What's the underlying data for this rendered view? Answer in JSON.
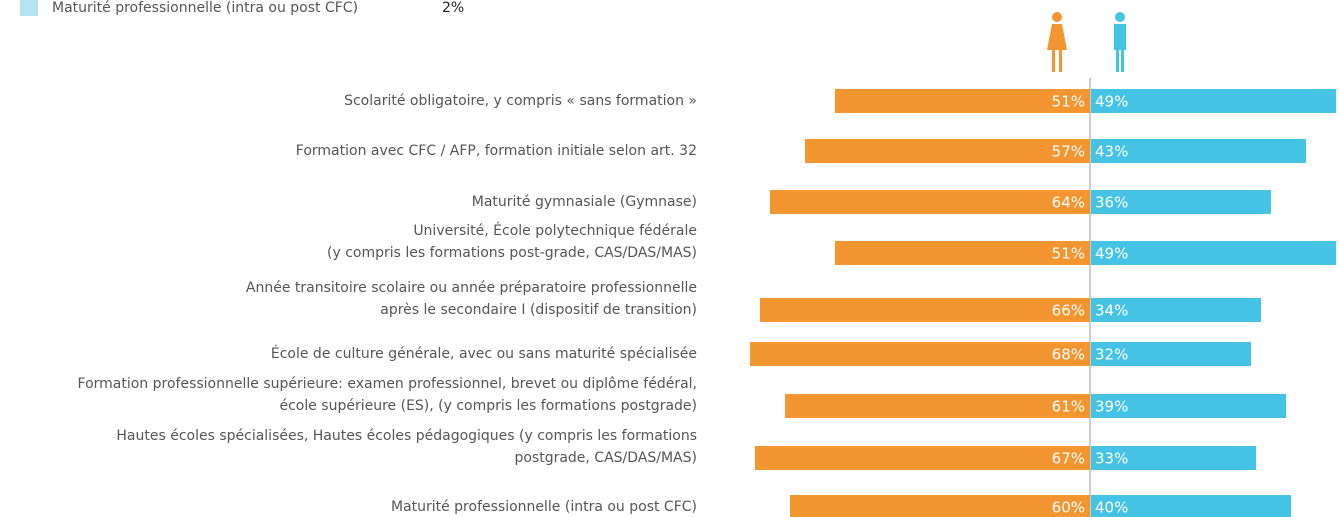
{
  "chart_data": {
    "type": "butterfly",
    "legend_fragment": {
      "label": "Maturité professionnelle  (intra ou post CFC)",
      "value_label": "2%"
    },
    "categories": [
      [
        "Scolarité obligatoire, y compris  « sans formation »"
      ],
      [
        "Formation avec CFC / AFP, formation initiale selon art. 32"
      ],
      [
        "Maturité gymnasiale (Gymnase)"
      ],
      [
        "Université, École polytechnique fédérale",
        "(y compris les formations post-grade, CAS/DAS/MAS)"
      ],
      [
        "Année transitoire scolaire ou année préparatoire professionnelle",
        "après le secondaire I (dispositif de transition)"
      ],
      [
        "École de culture générale, avec ou sans maturité spécialisée"
      ],
      [
        "Formation professionnelle supérieure: examen professionnel, brevet ou diplôme fédéral,",
        "école supérieure (ES), (y compris les formations postgrade)"
      ],
      [
        "Hautes écoles spécialisées, Hautes écoles pédagogiques (y compris les formations",
        "postgrade, CAS/DAS/MAS)"
      ],
      [
        "Maturité professionnelle  (intra ou post CFC)"
      ]
    ],
    "series": [
      {
        "color": "#f39530",
        "side": "left",
        "values": [
          51,
          57,
          64,
          51,
          66,
          68,
          61,
          67,
          60
        ],
        "value_labels": [
          "51%",
          "57%",
          "64%",
          "51%",
          "66%",
          "68%",
          "61%",
          "67%",
          "60%"
        ]
      },
      {
        "color": "#45c3e4",
        "side": "right",
        "values": [
          49,
          43,
          36,
          49,
          34,
          32,
          39,
          33,
          40
        ],
        "value_labels": [
          "49%",
          "43%",
          "36%",
          "49%",
          "34%",
          "32%",
          "39%",
          "33%",
          "40%"
        ]
      }
    ]
  }
}
